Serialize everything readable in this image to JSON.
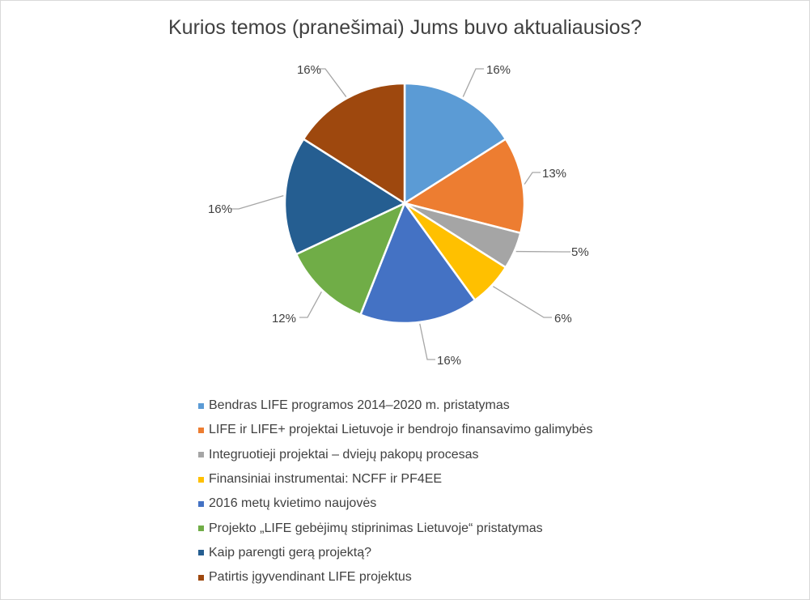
{
  "chart_data": {
    "type": "pie",
    "title": "Kurios temos (pranešimai) Jums buvo aktualiausios?",
    "slices": [
      {
        "label": "Bendras LIFE programos 2014–2020 m. pristatymas",
        "value": 16,
        "display": "16%",
        "color": "#5b9bd5"
      },
      {
        "label": "LIFE ir LIFE+ projektai Lietuvoje ir bendrojo finansavimo galimybės",
        "value": 13,
        "display": "13%",
        "color": "#ed7d31"
      },
      {
        "label": "Integruotieji projektai – dviejų pakopų procesas",
        "value": 5,
        "display": "5%",
        "color": "#a5a5a5"
      },
      {
        "label": "Finansiniai instrumentai: NCFF ir PF4EE",
        "value": 6,
        "display": "6%",
        "color": "#ffc000"
      },
      {
        "label": "2016 metų kvietimo naujovės",
        "value": 16,
        "display": "16%",
        "color": "#4472c4"
      },
      {
        "label": "Projekto „LIFE gebėjimų stiprinimas Lietuvoje“ pristatymas",
        "value": 12,
        "display": "12%",
        "color": "#70ad47"
      },
      {
        "label": "Kaip parengti gerą projektą?",
        "value": 16,
        "display": "16%",
        "color": "#255e91"
      },
      {
        "label": "Patirtis įgyvendinant LIFE projektus",
        "value": 16,
        "display": "16%",
        "color": "#9e480e"
      }
    ],
    "legend_position": "bottom"
  }
}
